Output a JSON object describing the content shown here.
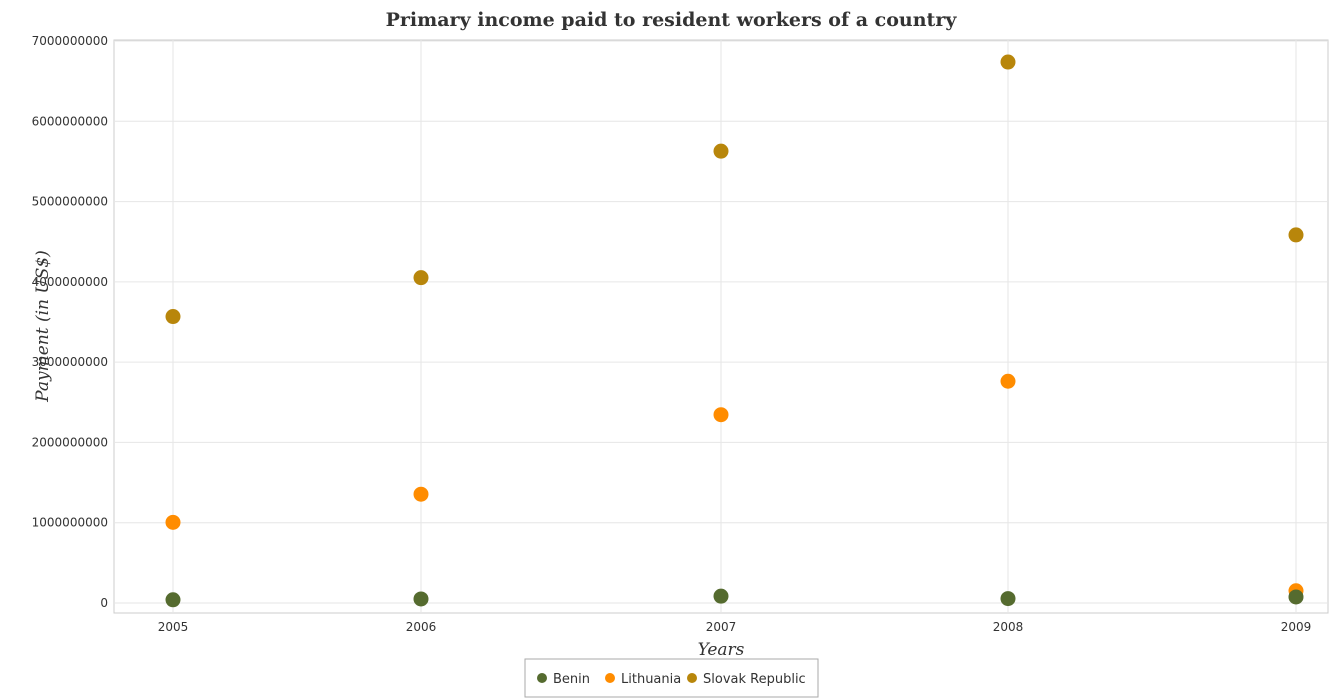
{
  "chart_data": {
    "type": "scatter",
    "title": "Primary income paid to resident workers of a country",
    "xlabel": "Years",
    "ylabel": "Payment (in US$)",
    "categories": [
      "2005",
      "2006",
      "2007",
      "2008",
      "2009"
    ],
    "ylim": [
      0,
      7000000000
    ],
    "yticks": [
      "0",
      "1000000000",
      "2000000000",
      "3000000000",
      "4000000000",
      "5000000000",
      "6000000000",
      "7000000000"
    ],
    "grid": true,
    "legend_position": "bottom-center",
    "series": [
      {
        "name": "Benin",
        "color": "#556b2f",
        "values": [
          40000000,
          50000000,
          85000000,
          55000000,
          75000000
        ]
      },
      {
        "name": "Lithuania",
        "color": "#ff8c00",
        "values": [
          1005000000,
          1355000000,
          2345000000,
          2762000000,
          152000000
        ]
      },
      {
        "name": "Slovak Republic",
        "color": "#b8860b",
        "values": [
          3568000000,
          4052000000,
          5628000000,
          6738000000,
          4585000000
        ]
      }
    ]
  }
}
